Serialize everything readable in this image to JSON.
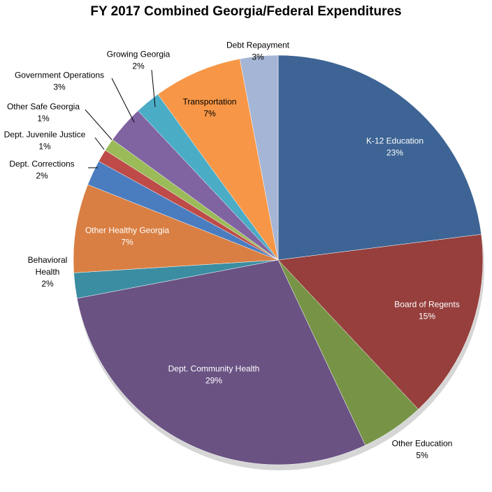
{
  "chart_data": {
    "type": "pie",
    "title": "FY 2017 Combined Georgia/Federal Expenditures",
    "legend": "none",
    "slices": [
      {
        "label": "K-12 Education",
        "value": 23,
        "display": "23%",
        "color": "#3D6494"
      },
      {
        "label": "Board of Regents",
        "value": 15,
        "display": "15%",
        "color": "#963F3D"
      },
      {
        "label": "Other Education",
        "value": 5,
        "display": "5%",
        "color": "#779446"
      },
      {
        "label": "Dept. Community Health",
        "value": 29,
        "display": "29%",
        "color": "#6A5283"
      },
      {
        "label": "Behavioral Health",
        "value": 2,
        "display": "2%",
        "color": "#3B8DA2"
      },
      {
        "label": "Other Healthy Georgia",
        "value": 7,
        "display": "7%",
        "color": "#D97F43"
      },
      {
        "label": "Dept. Corrections",
        "value": 2,
        "display": "2%",
        "color": "#4A7DBF"
      },
      {
        "label": "Dept. Juvenile Justice",
        "value": 1,
        "display": "1%",
        "color": "#BE4B48"
      },
      {
        "label": "Other Safe Georgia",
        "value": 1,
        "display": "1%",
        "color": "#9BBB59"
      },
      {
        "label": "Government Operations",
        "value": 3,
        "display": "3%",
        "color": "#8064A2"
      },
      {
        "label": "Growing Georgia",
        "value": 2,
        "display": "2%",
        "color": "#4BACC6"
      },
      {
        "label": "Transportation",
        "value": 7,
        "display": "7%",
        "color": "#F79646"
      },
      {
        "label": "Debt Repayment",
        "value": 3,
        "display": "3%",
        "color": "#A5B5D5"
      }
    ]
  }
}
